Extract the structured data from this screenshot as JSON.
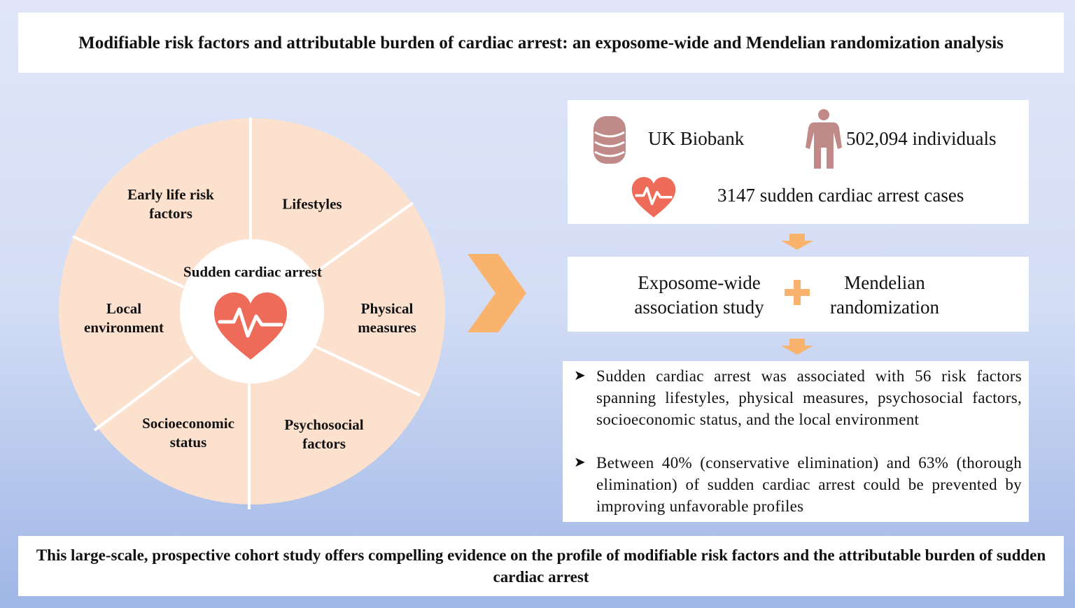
{
  "title": "Modifiable risk factors and attributable burden of cardiac arrest: an exposome-wide and Mendelian randomization analysis",
  "wheel": {
    "center": "Sudden cardiac arrest",
    "segments": [
      "Early life risk factors",
      "Lifestyles",
      "Physical measures",
      "Psychosocial factors",
      "Socioeconomic status",
      "Local environment"
    ]
  },
  "cohort": {
    "source": "UK Biobank",
    "individuals": "502,094 individuals",
    "cases": "3147 sudden cardiac arrest cases"
  },
  "methods": {
    "left": "Exposome-wide association study",
    "right": "Mendelian randomization"
  },
  "findings": [
    "Sudden cardiac arrest was associated with 56 risk factors spanning lifestyles, physical measures, psychosocial factors, socioeconomic status, and the local environment",
    "Between 40% (conservative elimination) and 63% (thorough elimination) of sudden cardiac arrest could be prevented by improving unfavorable profiles"
  ],
  "bullet_marker": "➤",
  "conclusion": "This large-scale, prospective cohort study offers compelling evidence on the profile of modifiable risk factors and the attributable burden of sudden cardiac arrest",
  "colors": {
    "wheel": "#fde1cf",
    "heart": "#ee6b5a",
    "arrow": "#f9b36d",
    "icon": "#c08a88"
  }
}
